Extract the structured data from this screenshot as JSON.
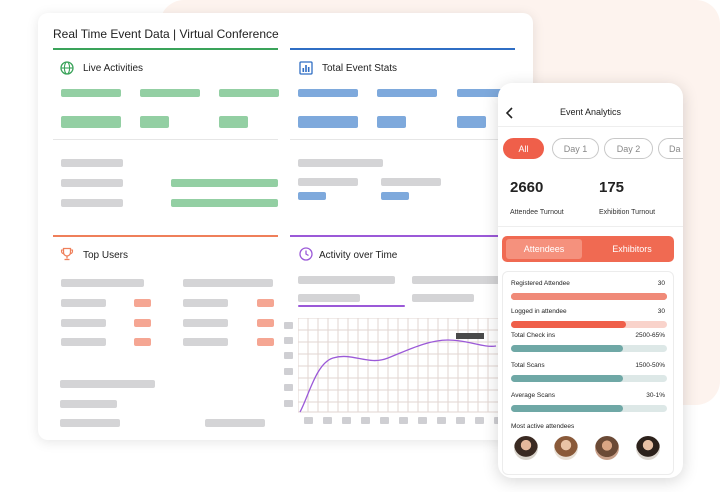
{
  "dashboard": {
    "title": "Real Time Event Data | Virtual Conference",
    "sections": {
      "live_activities": "Live Activities",
      "total_event_stats": "Total Event Stats",
      "top_users": "Top Users",
      "activity_over_time": "Activity over Time"
    },
    "colors": {
      "live": "#3aa35a",
      "stats": "#2f6ec4",
      "users": "#ef7f5a",
      "activity": "#9b59d8"
    },
    "icons": {
      "live": "globe-icon",
      "stats": "bar-chart-icon",
      "users": "trophy-icon",
      "activity": "clock-icon"
    }
  },
  "phone": {
    "back_icon": "chevron-left-icon",
    "title": "Event Analytics",
    "filters": [
      "All",
      "Day 1",
      "Day 2",
      "Da"
    ],
    "active_filter": "All",
    "stats": [
      {
        "value": "2660",
        "label": "Attendee Turnout"
      },
      {
        "value": "175",
        "label": "Exhibition Turnout"
      }
    ],
    "tabs": [
      "Attendees",
      "Exhibitors"
    ],
    "metrics": [
      {
        "label": "Registered Attendee",
        "value": "30",
        "fill": 1.0,
        "color": "#f08a78",
        "track": "#f08a78"
      },
      {
        "label": "Logged in attendee",
        "value": "30",
        "fill": 0.74,
        "color": "#ef5f4a",
        "track": "#f9d3cb"
      },
      {
        "label": "Total Check ins",
        "value": "2500-65%",
        "fill": 0.72,
        "color": "#6fa8a6",
        "track": "#dde8e7"
      },
      {
        "label": "Total Scans",
        "value": "1500-50%",
        "fill": 0.72,
        "color": "#6fa8a6",
        "track": "#dde8e7"
      },
      {
        "label": "Average Scans",
        "value": "30-1%",
        "fill": 0.72,
        "color": "#6fa8a6",
        "track": "#dde8e7"
      }
    ],
    "most_active_label": "Most active attendees"
  }
}
